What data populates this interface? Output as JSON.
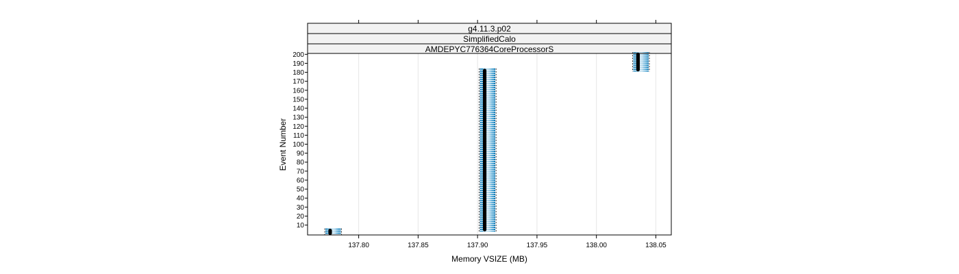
{
  "chart_data": {
    "type": "scatter",
    "title": "",
    "strips": [
      "g4.11.3.p02",
      "SimplifiedCalo",
      "AMDEPYC776364CoreProcessorS"
    ],
    "xlabel": "Memory VSIZE (MB)",
    "ylabel": "Event Number",
    "xlim": [
      137.757,
      138.063
    ],
    "ylim": [
      -1,
      201
    ],
    "x_ticks": [
      "137.80",
      "137.85",
      "137.90",
      "137.95",
      "138.00",
      "138.05"
    ],
    "x_tick_values": [
      137.8,
      137.85,
      137.9,
      137.95,
      138.0,
      138.05
    ],
    "y_ticks": [
      10,
      20,
      30,
      40,
      50,
      60,
      70,
      80,
      90,
      100,
      110,
      120,
      130,
      140,
      150,
      160,
      170,
      180,
      190,
      200
    ],
    "grid": true,
    "colors": {
      "points": "#000000",
      "bands": [
        "#0072b2",
        "#1b8bc4",
        "#4aa3d3",
        "#7cbde0",
        "#a9d4ea"
      ],
      "grid": "#e6e6e6",
      "strip_bg": "#f2f2f2"
    },
    "series": [
      {
        "clusters": [
          {
            "x": 137.776,
            "y_min": 1,
            "y_max": 4,
            "band_x_min": 137.772,
            "band_x_max": 137.785
          },
          {
            "x": 137.906,
            "y_min": 5,
            "y_max": 182,
            "band_x_min": 137.902,
            "band_x_max": 137.915
          },
          {
            "x": 138.035,
            "y_min": 183,
            "y_max": 200,
            "band_x_min": 138.031,
            "band_x_max": 138.044
          }
        ]
      }
    ]
  }
}
